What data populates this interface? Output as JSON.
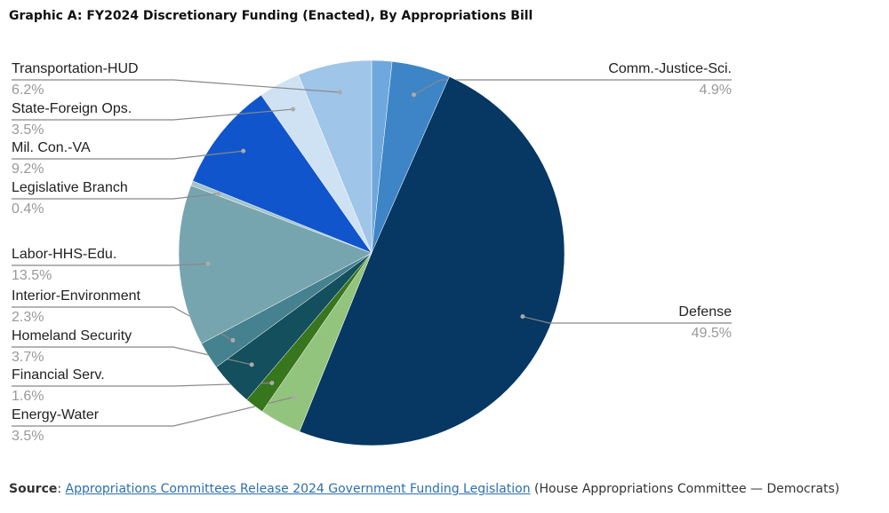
{
  "chart_data": {
    "type": "pie",
    "title": "Graphic A: FY2024 Discretionary Funding (Enacted), By Appropriations Bill",
    "categories": [
      null,
      "Comm.-Justice-Sci.",
      "Defense",
      "Energy-Water",
      "Financial Serv.",
      "Homeland Security",
      "Interior-Environment",
      "Labor-HHS-Edu.",
      "Legislative Branch",
      "Mil. Con.-VA",
      "State-Foreign Ops.",
      "Transportation-HUD"
    ],
    "values": [
      1.7,
      4.9,
      49.5,
      3.5,
      1.6,
      3.7,
      2.3,
      13.5,
      0.4,
      9.2,
      3.5,
      6.2
    ],
    "value_labels": [
      null,
      "4.9%",
      "49.5%",
      "3.5%",
      "1.6%",
      "3.7%",
      "2.3%",
      "13.5%",
      "0.4%",
      "9.2%",
      "3.5%",
      "6.2%"
    ],
    "colors": [
      "#6fa8dc",
      "#3d85c6",
      "#073763",
      "#93c47d",
      "#38761d",
      "#134f5c",
      "#45818e",
      "#76a5af",
      "#a2c4c9",
      "#1155cc",
      "#cfe2f3",
      "#9fc5e8"
    ],
    "source_label": "Source",
    "source_link": "Appropriations Committees Release 2024 Government Funding Legislation",
    "source_note": "(House Appropriations Committee — Democrats)"
  }
}
